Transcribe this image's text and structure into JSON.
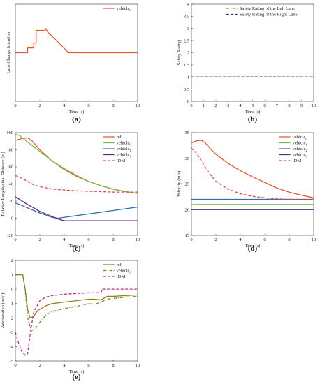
{
  "chart_data": [
    {
      "type": "line",
      "id": "a",
      "caption": "(a)",
      "xlabel": "Time (s)",
      "ylabel": "Lane Change Intention",
      "xlim": [
        0,
        10
      ],
      "ylim": [
        0,
        1
      ],
      "xticks": [
        "0",
        "2",
        "4",
        "6",
        "8",
        "10"
      ],
      "yticks": [],
      "legend_position": "top-right",
      "series": [
        {
          "name": "vehicle",
          "name_sub": "0",
          "color": "#e8572a",
          "dash": "solid",
          "x": [
            0,
            1.0,
            1.0,
            1.5,
            1.5,
            1.7,
            1.7,
            2.0,
            2.4,
            2.5,
            2.6,
            4.2,
            4.3,
            10
          ],
          "y": [
            0.5,
            0.5,
            0.55,
            0.55,
            0.6,
            0.6,
            0.73,
            0.73,
            0.73,
            0.75,
            0.72,
            0.52,
            0.5,
            0.5
          ]
        }
      ]
    },
    {
      "type": "line",
      "id": "b",
      "caption": "(b)",
      "xlabel": "Time (s)",
      "ylabel": "Safety Rating",
      "xlim": [
        0,
        10
      ],
      "ylim": [
        0,
        4
      ],
      "xticks": [
        "0",
        "1",
        "2",
        "3",
        "4",
        "5",
        "6",
        "7",
        "8",
        "9",
        "10"
      ],
      "yticks": [
        "0",
        "0.5",
        "1",
        "1.5",
        "2",
        "2.5",
        "3",
        "3.5",
        "4"
      ],
      "legend_position": "top-right",
      "series": [
        {
          "name": "Safety Rating of the Left Lane",
          "color": "#e8572a",
          "dash": "dashdot",
          "x": [
            0,
            10
          ],
          "y": [
            1,
            1
          ]
        },
        {
          "name": "Safety Rating of the Right Lane",
          "color": "#3b2a6e",
          "dash": "dash",
          "x": [
            0,
            10
          ],
          "y": [
            1,
            1
          ]
        }
      ]
    },
    {
      "type": "line",
      "id": "c",
      "caption": "(c)",
      "xlabel": "Time (s)",
      "ylabel": "Relative Longitudinal Distance (m)",
      "xlim": [
        0,
        10
      ],
      "ylim": [
        -20,
        100
      ],
      "xticks": [
        "0",
        "2",
        "4",
        "6",
        "8",
        "10"
      ],
      "yticks": [
        "-20",
        "0",
        "20",
        "40",
        "60",
        "80",
        "100"
      ],
      "legend_position": "top-right",
      "series": [
        {
          "name": "ref",
          "color": "#e8572a",
          "dash": "solid",
          "x": [
            0,
            0.5,
            1.0,
            1.4,
            2,
            3,
            4,
            5,
            6,
            7,
            8,
            9,
            10
          ],
          "y": [
            91,
            93,
            94,
            90,
            80,
            67,
            57,
            49,
            43,
            38,
            34,
            31,
            29
          ]
        },
        {
          "name": "vehicle",
          "name_sub": "0",
          "color": "#7ab648",
          "dash": "solid",
          "x": [
            0,
            0.3,
            1,
            2,
            3,
            4,
            5,
            6,
            7,
            8,
            9,
            10
          ],
          "y": [
            98,
            97,
            89,
            78,
            67,
            58,
            50,
            43,
            38,
            34,
            31,
            29
          ]
        },
        {
          "name": "vehicle",
          "name_sub": "1",
          "color": "#2f6fb0",
          "dash": "solid",
          "x": [
            0,
            1,
            2,
            3,
            3.5,
            4,
            5,
            6,
            7,
            8,
            9,
            10
          ],
          "y": [
            18,
            12,
            6,
            1,
            0,
            1,
            3,
            5,
            7,
            9,
            11,
            13
          ]
        },
        {
          "name": "vehicle",
          "name_sub": "3",
          "color": "#5a2a7a",
          "dash": "solid",
          "x": [
            0,
            1,
            2,
            3,
            3.5,
            4,
            5,
            6,
            7,
            8,
            9,
            10
          ],
          "y": [
            25,
            16,
            8,
            2,
            -1,
            -3,
            -3,
            -3,
            -3,
            -3,
            -3,
            -3
          ]
        },
        {
          "name": "IDM",
          "color": "#e0445a",
          "dash": "dash",
          "x": [
            0,
            0.5,
            1,
            1.5,
            2,
            3,
            4,
            5,
            6,
            7,
            8,
            9,
            10
          ],
          "y": [
            50,
            47,
            43,
            39,
            37,
            34,
            33,
            32,
            31.5,
            31,
            30.5,
            30.5,
            30.5
          ]
        }
      ]
    },
    {
      "type": "line",
      "id": "d",
      "caption": "(d)",
      "xlabel": "Time (s)",
      "ylabel": "Velocity (m/s)",
      "xlim": [
        0,
        10
      ],
      "ylim": [
        15,
        35
      ],
      "xticks": [
        "0",
        "2",
        "4",
        "6",
        "8",
        "10"
      ],
      "yticks": [
        "15",
        "20",
        "25",
        "30",
        "35"
      ],
      "legend_position": "top-right",
      "series": [
        {
          "name": "vehicle",
          "name_sub": "0",
          "color": "#e8572a",
          "dash": "solid",
          "x": [
            0,
            0.4,
            0.8,
            1.1,
            1.5,
            2,
            3,
            4,
            5,
            6,
            7,
            8,
            9,
            10
          ],
          "y": [
            33,
            33.4,
            33.5,
            33.1,
            32,
            30.8,
            29,
            27.6,
            26.4,
            25.3,
            24.2,
            23.4,
            22.8,
            22.3
          ]
        },
        {
          "name": "vehicle",
          "name_sub": "1",
          "color": "#7ab648",
          "dash": "solid",
          "x": [
            0,
            10
          ],
          "y": [
            21,
            21
          ]
        },
        {
          "name": "vehicle",
          "name_sub": "2",
          "color": "#2f6fb0",
          "dash": "solid",
          "x": [
            0,
            10
          ],
          "y": [
            22,
            22
          ]
        },
        {
          "name": "vehicle",
          "name_sub": "3",
          "color": "#5a2a7a",
          "dash": "solid",
          "x": [
            0,
            10
          ],
          "y": [
            20,
            20
          ]
        },
        {
          "name": "IDM",
          "color": "#e0445a",
          "dash": "dash",
          "x": [
            0,
            0.3,
            0.7,
            1,
            1.5,
            2,
            3,
            4,
            5,
            6,
            7,
            8,
            9,
            10
          ],
          "y": [
            32,
            31.3,
            30,
            28.7,
            27,
            25.5,
            24,
            23.1,
            22.6,
            22.3,
            22.1,
            22,
            22,
            22
          ]
        }
      ]
    },
    {
      "type": "line",
      "id": "e",
      "caption": "(e)",
      "xlabel": "Time (s)",
      "ylabel": "Acceleration (m/s²)",
      "xlim": [
        0,
        10
      ],
      "ylim": [
        -5,
        2
      ],
      "xticks": [
        "0",
        "2",
        "4",
        "6",
        "8",
        "10"
      ],
      "yticks": [
        "-5",
        "-4",
        "-3",
        "-2",
        "-1",
        "0",
        "1",
        "2"
      ],
      "legend_position": "top-right",
      "series": [
        {
          "name": "ref",
          "color": "#9a7a1e",
          "dash": "solid",
          "x": [
            0,
            0.6,
            0.8,
            1.0,
            1.2,
            1.5,
            1.8,
            2.5,
            3,
            4,
            5,
            6,
            6.5,
            7,
            7.5,
            8,
            9,
            10
          ],
          "y": [
            1,
            1,
            0,
            -1.4,
            -2.0,
            -1.9,
            -1.5,
            -1.15,
            -1.0,
            -0.9,
            -0.8,
            -0.7,
            -0.7,
            -0.75,
            -0.5,
            -0.5,
            -0.45,
            -0.4
          ]
        },
        {
          "name": "vehicle",
          "name_sub": "0",
          "color": "#6e8a1e",
          "dash": "dashdot",
          "x": [
            0,
            0.6,
            0.8,
            1.0,
            1.3,
            1.6,
            2,
            2.5,
            3,
            4,
            5,
            6,
            6.5,
            7,
            7.5,
            8,
            9,
            10
          ],
          "y": [
            1,
            1,
            0,
            -2.0,
            -2.9,
            -2.8,
            -2.3,
            -1.8,
            -1.55,
            -1.35,
            -1.2,
            -1.0,
            -1.05,
            -0.9,
            -0.7,
            -0.65,
            -0.55,
            -0.5
          ]
        },
        {
          "name": "IDM",
          "color": "#c02a8e",
          "dash": "dash",
          "x": [
            0,
            0.2,
            0.5,
            0.8,
            1.0,
            1.2,
            1.5,
            2,
            2.5,
            3,
            4,
            5,
            6,
            7,
            7.1,
            8,
            9,
            10
          ],
          "y": [
            -3.0,
            -3.6,
            -4.3,
            -4.6,
            -4.5,
            -3.2,
            -1.6,
            -0.8,
            -0.55,
            -0.45,
            -0.35,
            -0.3,
            -0.25,
            -0.25,
            0,
            0,
            0,
            0
          ]
        }
      ]
    }
  ]
}
